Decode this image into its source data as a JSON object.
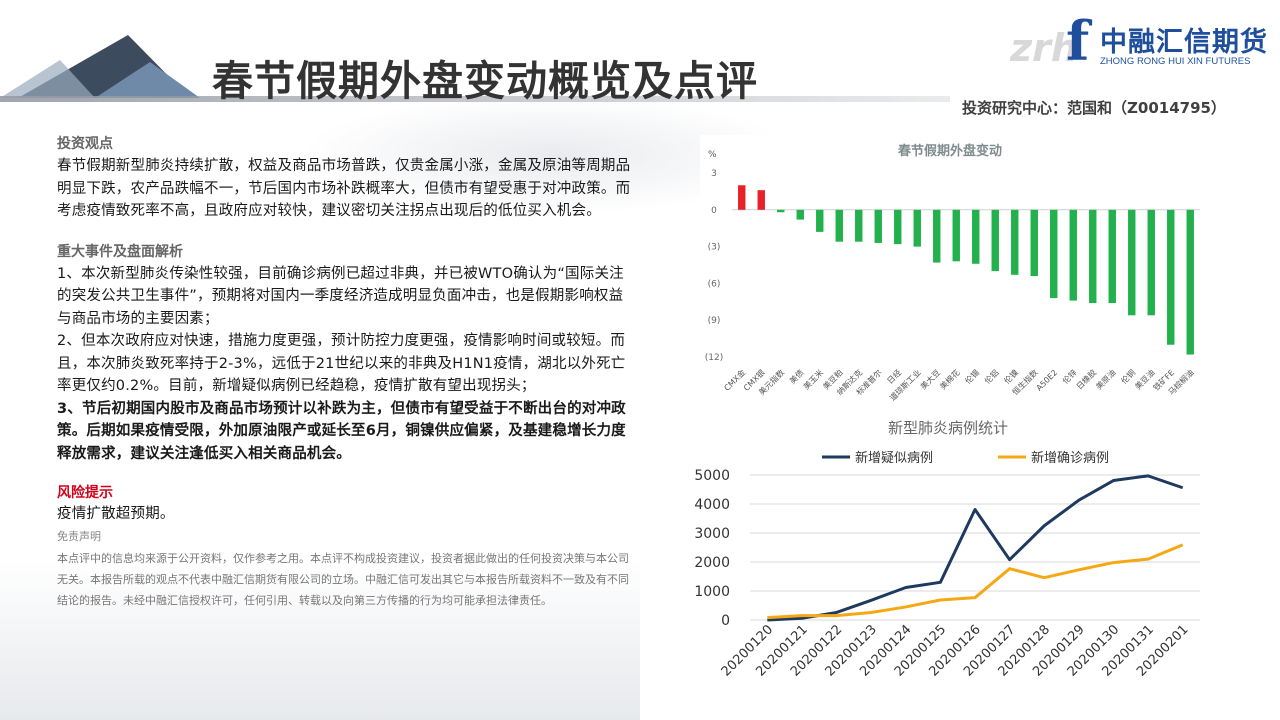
{
  "header": {
    "title": "春节假期外盘变动概览及点评",
    "logo_cn": "中融汇信期货",
    "logo_en": "ZHONG RONG HUI XIN FUTURES",
    "author": "投资研究中心：范国和（Z0014795）"
  },
  "left": {
    "view_heading": "投资观点",
    "view_text": "春节假期新型肺炎持续扩散，权益及商品市场普跌，仅贵金属小涨，金属及原油等周期品明显下跌，农产品跌幅不一，节后国内市场补跌概率大，但债市有望受惠于对冲政策。而考虑疫情致死率不高，且政府应对较快，建议密切关注拐点出现后的低位买入机会。",
    "events_heading": "重大事件及盘面解析",
    "event1": "1、本次新型肺炎传染性较强，目前确诊病例已超过非典，并已被WTO确认为“国际关注的突发公共卫生事件”，预期将对国内一季度经济造成明显负面冲击，也是假期影响权益与商品市场的主要因素；",
    "event2": "2、但本次政府应对快速，措施力度更强，预计防控力度更强，疫情影响时间或较短。而且，本次肺炎致死率持于2-3%，远低于21世纪以来的非典及H1N1疫情，湖北以外死亡率更仅约0.2%。目前，新增疑似病例已经趋稳，疫情扩散有望出现拐头；",
    "event3": "3、节后初期国内股市及商品市场预计以补跌为主，但债市有望受益于不断出台的对冲政策。后期如果疫情受限，外加原油限产或延长至6月，铜镍供应偏紧，及基建稳增长力度释放需求，建议关注逢低买入相关商品机会。",
    "risk_heading": "风险提示",
    "risk_text": "疫情扩散超预期。",
    "disclaimer_heading": "免责声明",
    "disclaimer_text": "本点评中的信息均来源于公开资料，仅作参考之用。本点评不构成投资建议，投资者据此做出的任何投资决策与本公司无关。本报告所载的观点不代表中融汇信期货有限公司的立场。中融汇信可发出其它与本报告所载资料不一致及有不同结论的报告。未经中融汇信授权许可，任何引用、转载以及向第三方传播的行为均可能承担法律责任。"
  },
  "colors": {
    "title": "#333333",
    "brand": "#1f4f9c",
    "bar_up": "#e8202a",
    "bar_down": "#22b14c",
    "line_suspected": "#1f3a5f",
    "line_confirmed": "#f5a814",
    "risk": "#d0021b"
  },
  "chart_data": [
    {
      "type": "bar",
      "title": "春节假期外盘变动",
      "ylabel": "%",
      "ylim": [
        -12,
        3
      ],
      "y_ticks": [
        "3",
        "0",
        "(3)",
        "(6)",
        "(9)",
        "(12)"
      ],
      "categories": [
        "CMX金",
        "CMX银",
        "美元指数",
        "美债",
        "美玉米",
        "美豆粕",
        "纳斯达克",
        "标准普尔",
        "日经",
        "道琼斯工业",
        "美大豆",
        "美棉花",
        "伦锡",
        "伦铝",
        "伦镍",
        "恒生指数",
        "A50E2",
        "伦锌",
        "日橡胶",
        "美原油",
        "伦铜",
        "美豆油",
        "铁矿FE",
        "马棕榈油"
      ],
      "values": [
        2.0,
        1.6,
        -0.2,
        -0.8,
        -1.8,
        -2.6,
        -2.6,
        -2.7,
        -2.8,
        -3.0,
        -4.3,
        -4.2,
        -4.4,
        -5.0,
        -5.3,
        -5.4,
        -7.2,
        -7.4,
        -7.6,
        -7.6,
        -8.6,
        -8.6,
        -11.0,
        -11.8
      ],
      "grid": false,
      "legend": "none"
    },
    {
      "type": "line",
      "title": "新型肺炎病例统计",
      "x": [
        "20200120",
        "20200121",
        "20200122",
        "20200123",
        "20200124",
        "20200125",
        "20200126",
        "20200127",
        "20200128",
        "20200129",
        "20200130",
        "20200131",
        "20200201"
      ],
      "ylim": [
        0,
        5000
      ],
      "y_ticks": [
        "0",
        "1000",
        "2000",
        "3000",
        "4000",
        "5000"
      ],
      "series": [
        {
          "name": "新增疑似病例",
          "values": [
            0,
            60,
            260,
            680,
            1120,
            1300,
            3810,
            2080,
            3250,
            4130,
            4810,
            4970,
            4560
          ]
        },
        {
          "name": "新增确诊病例",
          "values": [
            80,
            150,
            150,
            260,
            450,
            690,
            770,
            1770,
            1460,
            1730,
            1980,
            2100,
            2590
          ]
        }
      ],
      "grid": true,
      "legend": "top"
    }
  ]
}
